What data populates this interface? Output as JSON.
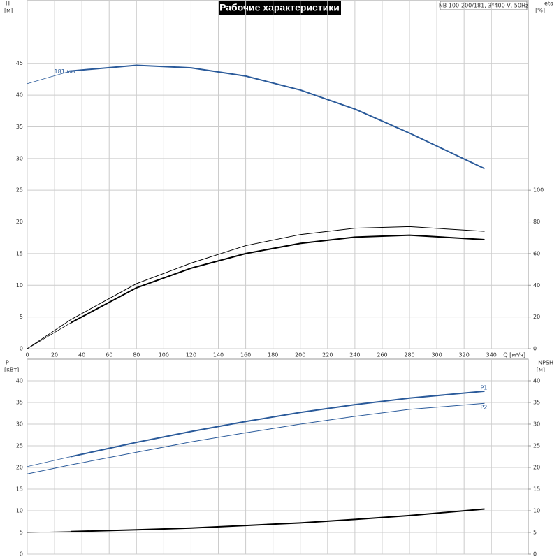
{
  "title": "Рабочие характеристики",
  "info": "NB 100-200/181, 3*400 V, 50Hz",
  "chart_data": [
    {
      "type": "line",
      "y_label": "H",
      "y_unit": "[м]",
      "y2_label": "eta",
      "y2_unit": "[%]",
      "x_label": "Q [м³/ч]",
      "x": [
        0,
        32,
        80,
        120,
        160,
        200,
        240,
        280,
        335
      ],
      "xlim": [
        0,
        367
      ],
      "xticks": [
        0,
        20,
        40,
        60,
        80,
        100,
        120,
        140,
        160,
        180,
        200,
        220,
        240,
        260,
        280,
        300,
        320,
        340
      ],
      "xtick_labels": true,
      "ylim": [
        0,
        55
      ],
      "yticks": [
        0,
        5,
        10,
        15,
        20,
        25,
        30,
        35,
        40,
        45
      ],
      "y2lim": [
        0,
        220
      ],
      "y2ticks": [
        0,
        20,
        40,
        60,
        80,
        100
      ],
      "grid": true,
      "series": [
        {
          "color": "#2a5a9a",
          "width": 0.8,
          "values": [
            41.8,
            43.8,
            null,
            null,
            null,
            null,
            null,
            null,
            null
          ]
        },
        {
          "name": "181 мм",
          "label_at": "start",
          "color": "#2a5a9a",
          "width": 2,
          "values": [
            null,
            43.8,
            44.7,
            44.3,
            43.0,
            40.8,
            37.8,
            34.0,
            28.4
          ]
        },
        {
          "color": "#000000",
          "width": 1,
          "axis": "y2",
          "values": [
            0,
            18.4,
            41,
            54,
            65,
            72,
            76,
            77,
            74
          ]
        },
        {
          "color": "#000000",
          "width": 0.8,
          "axis": "y2",
          "values": [
            0,
            16.4,
            null,
            null,
            null,
            null,
            null,
            null,
            null
          ]
        },
        {
          "color": "#000000",
          "width": 2,
          "axis": "y2",
          "values": [
            null,
            16.4,
            38.4,
            50.8,
            60,
            66.4,
            70.4,
            71.6,
            68.8
          ]
        }
      ]
    },
    {
      "type": "line",
      "y_label": "P",
      "y_unit": "[кВт]",
      "y2_label": "NPSH",
      "y2_unit": "[м]",
      "x": [
        0,
        32,
        80,
        120,
        160,
        200,
        240,
        280,
        335
      ],
      "xlim": [
        0,
        367
      ],
      "xticks": [
        0,
        20,
        40,
        60,
        80,
        100,
        120,
        140,
        160,
        180,
        200,
        220,
        240,
        260,
        280,
        300,
        320,
        340
      ],
      "xtick_labels": false,
      "ylim": [
        0,
        45
      ],
      "yticks": [
        0,
        5,
        10,
        15,
        20,
        25,
        30,
        35,
        40
      ],
      "y2lim": [
        0,
        45
      ],
      "y2ticks": [
        0,
        5,
        10,
        15,
        20,
        25,
        30,
        35,
        40
      ],
      "grid": true,
      "series": [
        {
          "color": "#2a5a9a",
          "width": 0.8,
          "values": [
            20.2,
            22.5,
            null,
            null,
            null,
            null,
            null,
            null,
            null
          ]
        },
        {
          "name": "P1",
          "label_at": "end",
          "color": "#2a5a9a",
          "width": 2,
          "values": [
            null,
            22.5,
            25.8,
            28.3,
            30.6,
            32.7,
            34.5,
            36.0,
            37.6
          ]
        },
        {
          "name": "P2",
          "label_at": "end",
          "color": "#2a5a9a",
          "width": 1,
          "values": [
            18.5,
            20.6,
            23.5,
            25.9,
            28.0,
            30.0,
            31.8,
            33.4,
            34.8
          ]
        },
        {
          "color": "#000000",
          "width": 0.8,
          "axis": "y2",
          "values": [
            5.0,
            5.2,
            null,
            null,
            null,
            null,
            null,
            null,
            null
          ]
        },
        {
          "color": "#000000",
          "width": 2,
          "axis": "y2",
          "values": [
            null,
            5.2,
            5.6,
            6.0,
            6.6,
            7.2,
            8.0,
            8.9,
            10.4
          ]
        }
      ]
    }
  ]
}
